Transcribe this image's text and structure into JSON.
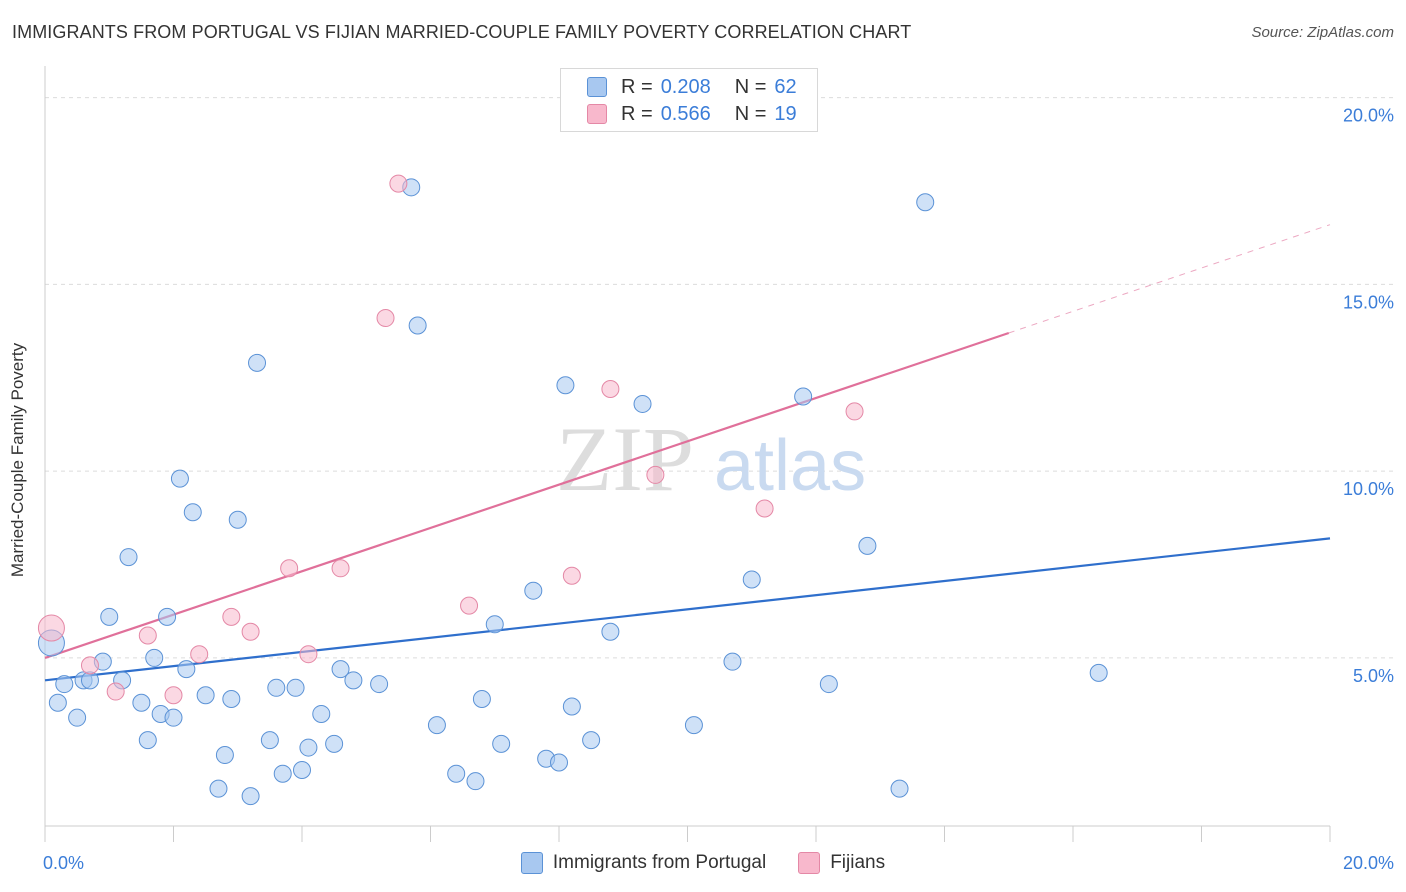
{
  "title": "IMMIGRANTS FROM PORTUGAL VS FIJIAN MARRIED-COUPLE FAMILY POVERTY CORRELATION CHART",
  "source": "Source: ZipAtlas.com",
  "watermark": {
    "zip": "ZIP",
    "atlas": "atlas"
  },
  "legend_stats": [
    {
      "r_label": "R =",
      "r_value": "0.208",
      "n_label": "N =",
      "n_value": "62",
      "color": "#a8c8f0"
    },
    {
      "r_label": "R =",
      "r_value": "0.566",
      "n_label": "N =",
      "n_value": "19",
      "color": "#f8b8cc"
    }
  ],
  "legend_bottom": [
    {
      "label": "Immigrants from Portugal",
      "color": "#a8c8f0"
    },
    {
      "label": "Fijians",
      "color": "#f8b8cc"
    }
  ],
  "chart_data": {
    "type": "scatter",
    "title": "IMMIGRANTS FROM PORTUGAL VS FIJIAN MARRIED-COUPLE FAMILY POVERTY CORRELATION CHART",
    "xlabel": "",
    "ylabel": "Married-Couple Family Poverty",
    "xlim": [
      0,
      20
    ],
    "ylim": [
      0.5,
      20.5
    ],
    "x_tick_labels": [
      {
        "value": 0,
        "label": "0.0%"
      },
      {
        "value": 20,
        "label": "20.0%"
      }
    ],
    "y_tick_labels": [
      {
        "value": 5,
        "label": "5.0%"
      },
      {
        "value": 10,
        "label": "10.0%"
      },
      {
        "value": 15,
        "label": "15.0%"
      },
      {
        "value": 20,
        "label": "20.0%"
      }
    ],
    "grid": true,
    "legend_position": "top-center",
    "series": [
      {
        "name": "Immigrants from Portugal",
        "color": "#a8c8f0",
        "stroke": "#5b92d6",
        "trend": {
          "x": [
            0,
            20
          ],
          "y": [
            4.4,
            8.2
          ],
          "color": "#2f6fcc"
        },
        "points": [
          [
            0.1,
            5.4
          ],
          [
            0.2,
            3.8
          ],
          [
            0.3,
            4.3
          ],
          [
            0.5,
            3.4
          ],
          [
            0.6,
            4.4
          ],
          [
            0.7,
            4.4
          ],
          [
            0.9,
            4.9
          ],
          [
            1.0,
            6.1
          ],
          [
            1.2,
            4.4
          ],
          [
            1.3,
            7.7
          ],
          [
            1.5,
            3.8
          ],
          [
            1.6,
            2.8
          ],
          [
            1.7,
            5.0
          ],
          [
            1.8,
            3.5
          ],
          [
            1.9,
            6.1
          ],
          [
            2.0,
            3.4
          ],
          [
            2.1,
            9.8
          ],
          [
            2.2,
            4.7
          ],
          [
            2.3,
            8.9
          ],
          [
            2.5,
            4.0
          ],
          [
            2.7,
            1.5
          ],
          [
            2.8,
            2.4
          ],
          [
            2.9,
            3.9
          ],
          [
            3.0,
            8.7
          ],
          [
            3.2,
            1.3
          ],
          [
            3.3,
            12.9
          ],
          [
            3.5,
            2.8
          ],
          [
            3.6,
            4.2
          ],
          [
            3.7,
            1.9
          ],
          [
            3.9,
            4.2
          ],
          [
            4.0,
            2.0
          ],
          [
            4.1,
            2.6
          ],
          [
            4.3,
            3.5
          ],
          [
            4.5,
            2.7
          ],
          [
            4.6,
            4.7
          ],
          [
            4.8,
            4.4
          ],
          [
            5.2,
            4.3
          ],
          [
            5.7,
            17.6
          ],
          [
            5.8,
            13.9
          ],
          [
            6.1,
            3.2
          ],
          [
            6.4,
            1.9
          ],
          [
            6.7,
            1.7
          ],
          [
            6.8,
            3.9
          ],
          [
            7.0,
            5.9
          ],
          [
            7.1,
            2.7
          ],
          [
            7.6,
            6.8
          ],
          [
            7.8,
            2.3
          ],
          [
            8.0,
            2.2
          ],
          [
            8.1,
            12.3
          ],
          [
            8.2,
            3.7
          ],
          [
            8.5,
            2.8
          ],
          [
            8.8,
            5.7
          ],
          [
            9.3,
            11.8
          ],
          [
            10.1,
            3.2
          ],
          [
            10.7,
            4.9
          ],
          [
            11.0,
            7.1
          ],
          [
            11.8,
            12.0
          ],
          [
            12.2,
            4.3
          ],
          [
            12.8,
            8.0
          ],
          [
            13.3,
            1.5
          ],
          [
            13.7,
            17.2
          ],
          [
            16.4,
            4.6
          ]
        ]
      },
      {
        "name": "Fijians",
        "color": "#f8b8cc",
        "stroke": "#e488a6",
        "trend": {
          "x": [
            0,
            15
          ],
          "y": [
            5.0,
            13.7
          ],
          "dash_to": [
            20,
            16.6
          ],
          "color": "#e0709a"
        },
        "points": [
          [
            0.1,
            5.8
          ],
          [
            0.7,
            4.8
          ],
          [
            1.1,
            4.1
          ],
          [
            1.6,
            5.6
          ],
          [
            2.0,
            4.0
          ],
          [
            2.4,
            5.1
          ],
          [
            2.9,
            6.1
          ],
          [
            3.2,
            5.7
          ],
          [
            3.8,
            7.4
          ],
          [
            4.1,
            5.1
          ],
          [
            4.6,
            7.4
          ],
          [
            5.3,
            14.1
          ],
          [
            5.5,
            17.7
          ],
          [
            6.6,
            6.4
          ],
          [
            8.2,
            7.2
          ],
          [
            8.8,
            12.2
          ],
          [
            9.5,
            9.9
          ],
          [
            11.2,
            9.0
          ],
          [
            12.6,
            11.6
          ]
        ]
      }
    ]
  }
}
